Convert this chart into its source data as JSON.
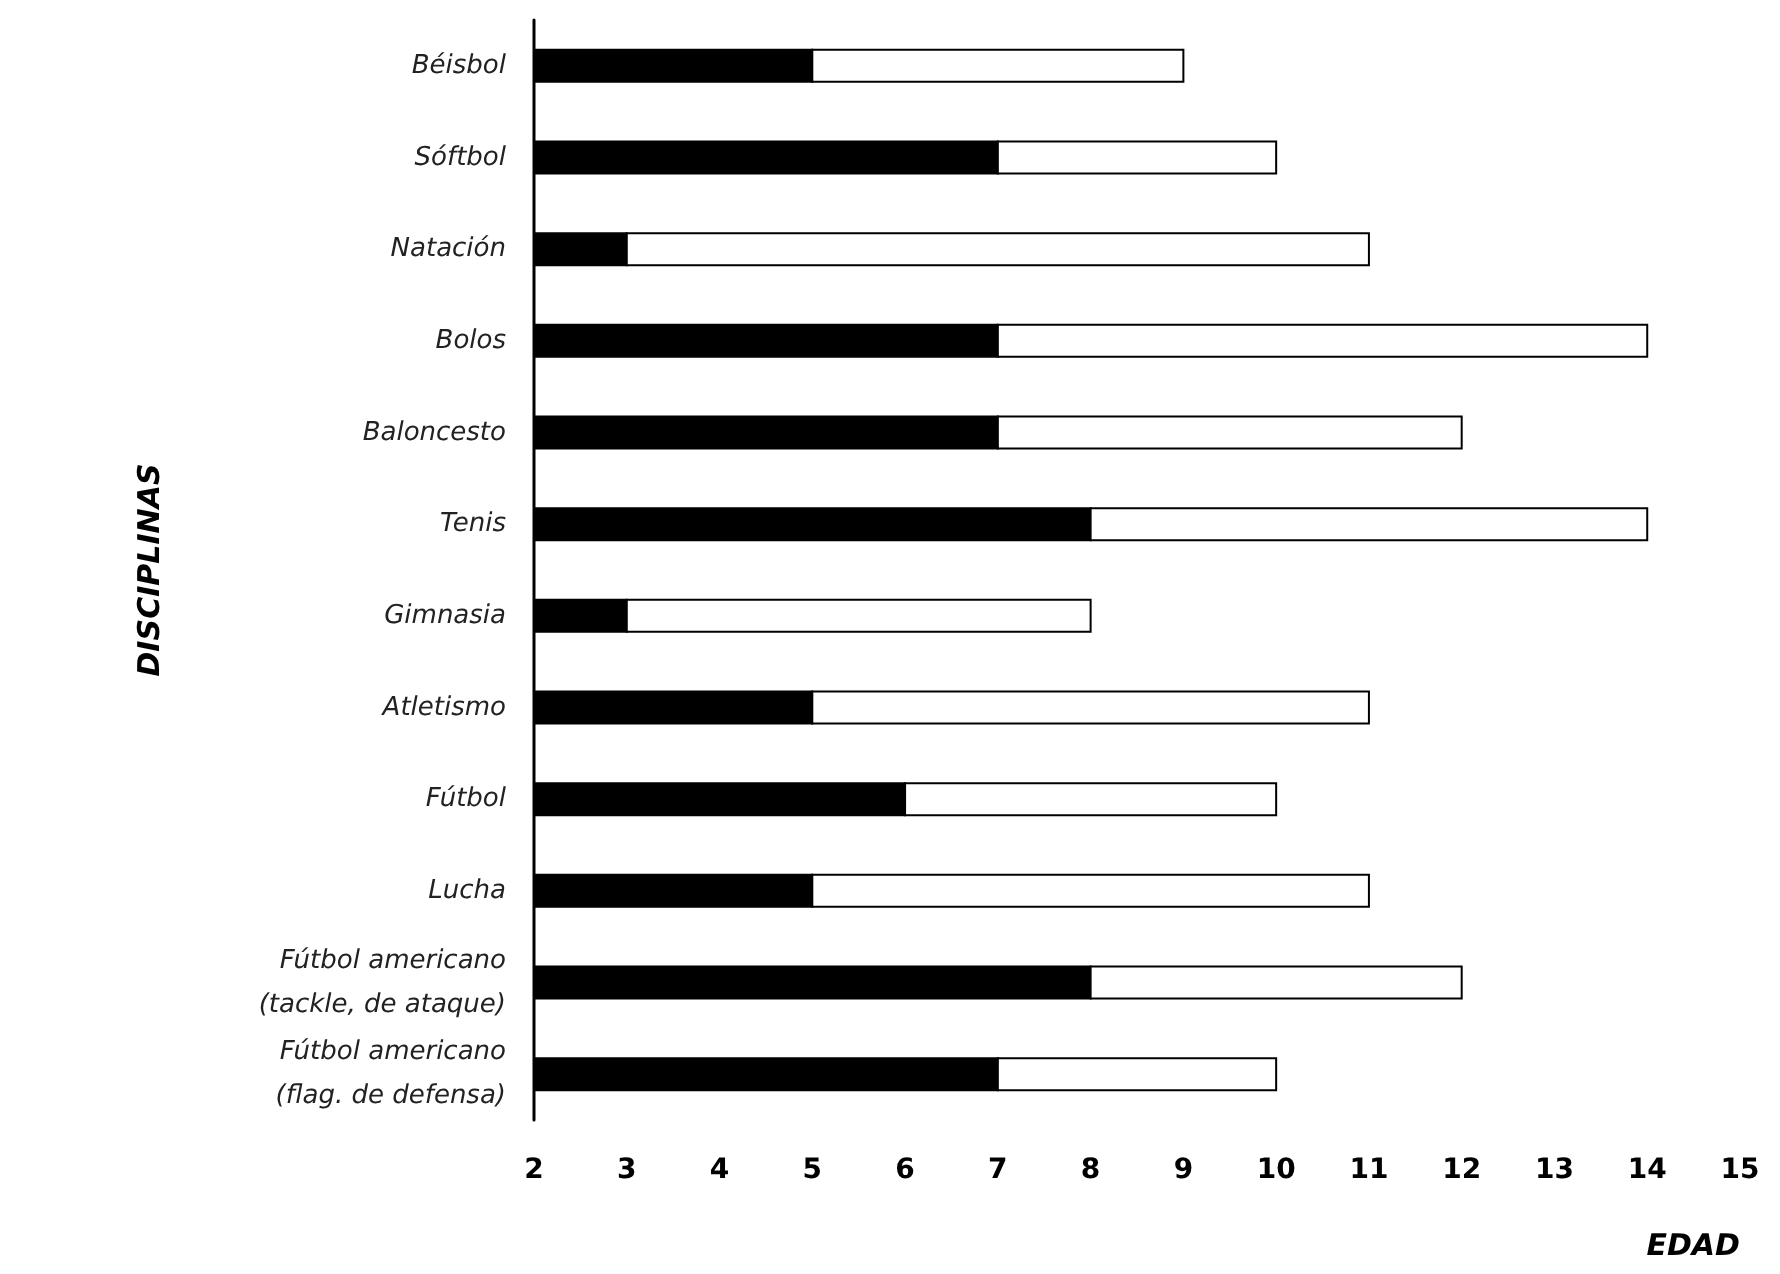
{
  "chart_data": {
    "type": "bar",
    "orientation": "horizontal",
    "xlabel": "EDAD",
    "ylabel": "DISCIPLINAS",
    "categories": [
      "Béisbol",
      "Sóftbol",
      "Natación",
      "Bolos",
      "Baloncesto",
      "Tenis",
      "Gimnasia",
      "Atletismo",
      "Fútbol",
      "Lucha",
      "Fútbol americano\n(tackle, de ataque)",
      "Fútbol americano\n(flag. de defensa)"
    ],
    "series": [
      {
        "color": "#000000",
        "base": [
          2,
          2,
          2,
          2,
          2,
          2,
          2,
          2,
          2,
          2,
          2,
          2
        ],
        "values": [
          3,
          5,
          1,
          5,
          5,
          6,
          1,
          3,
          4,
          3,
          6,
          5
        ]
      },
      {
        "color": "#ffffff",
        "base": [
          5,
          7,
          3,
          7,
          7,
          8,
          3,
          5,
          6,
          5,
          8,
          7
        ],
        "values": [
          4,
          3,
          8,
          7,
          5,
          6,
          5,
          6,
          4,
          6,
          4,
          3
        ]
      }
    ],
    "xlim": [
      2,
      15
    ],
    "xticks": [
      2,
      3,
      4,
      5,
      6,
      7,
      8,
      9,
      10,
      11,
      12,
      13,
      14,
      15
    ],
    "grid": false
  }
}
